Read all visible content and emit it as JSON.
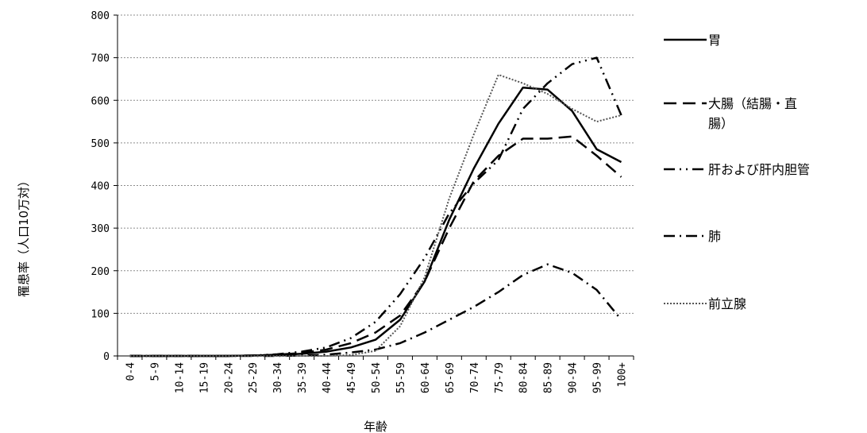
{
  "chart_data": {
    "type": "line",
    "title": "",
    "xlabel": "年齢",
    "ylabel": "罹患率（人口10万対）",
    "ylim": [
      0,
      800
    ],
    "yticks": [
      0,
      100,
      200,
      300,
      400,
      500,
      600,
      700,
      800
    ],
    "grid": "horizontal dotted",
    "legend_position": "right",
    "categories": [
      "0-4",
      "5-9",
      "10-14",
      "15-19",
      "20-24",
      "25-29",
      "30-34",
      "35-39",
      "40-44",
      "45-49",
      "50-54",
      "55-59",
      "60-64",
      "65-69",
      "70-74",
      "75-79",
      "80-84",
      "85-89",
      "90-94",
      "95-99",
      "100+"
    ],
    "series": [
      {
        "name": "胃",
        "style": "solid",
        "legend_lines": [
          "胃"
        ],
        "values": [
          0,
          0,
          0,
          0,
          0,
          1,
          2,
          5,
          10,
          20,
          38,
          85,
          175,
          320,
          440,
          545,
          630,
          625,
          575,
          485,
          455
        ]
      },
      {
        "name": "大腸（結腸・直腸）",
        "style": "long-dash",
        "legend_lines": [
          "大腸（結腸・直",
          "腸）"
        ],
        "values": [
          0,
          0,
          0,
          0,
          0,
          1,
          3,
          7,
          15,
          30,
          55,
          95,
          175,
          300,
          410,
          470,
          510,
          510,
          515,
          470,
          420
        ]
      },
      {
        "name": "肝および肝内胆管",
        "style": "dash-dot-dot",
        "legend_lines": [
          "肝および肝内胆管"
        ],
        "values": [
          0,
          0,
          0,
          0,
          0,
          1,
          4,
          10,
          20,
          42,
          80,
          145,
          230,
          335,
          405,
          460,
          580,
          640,
          685,
          700,
          565
        ]
      },
      {
        "name": "肺",
        "style": "dash-dot",
        "legend_lines": [
          "肺"
        ],
        "values": [
          0,
          0,
          0,
          0,
          0,
          0,
          0,
          1,
          3,
          8,
          15,
          30,
          55,
          85,
          115,
          150,
          190,
          215,
          195,
          155,
          85
        ]
      },
      {
        "name": "前立腺",
        "style": "dotted",
        "legend_lines": [
          "前立腺"
        ],
        "values": [
          0,
          0,
          0,
          0,
          0,
          0,
          0,
          0,
          0,
          2,
          12,
          70,
          185,
          370,
          520,
          660,
          640,
          615,
          580,
          550,
          565
        ]
      }
    ]
  }
}
